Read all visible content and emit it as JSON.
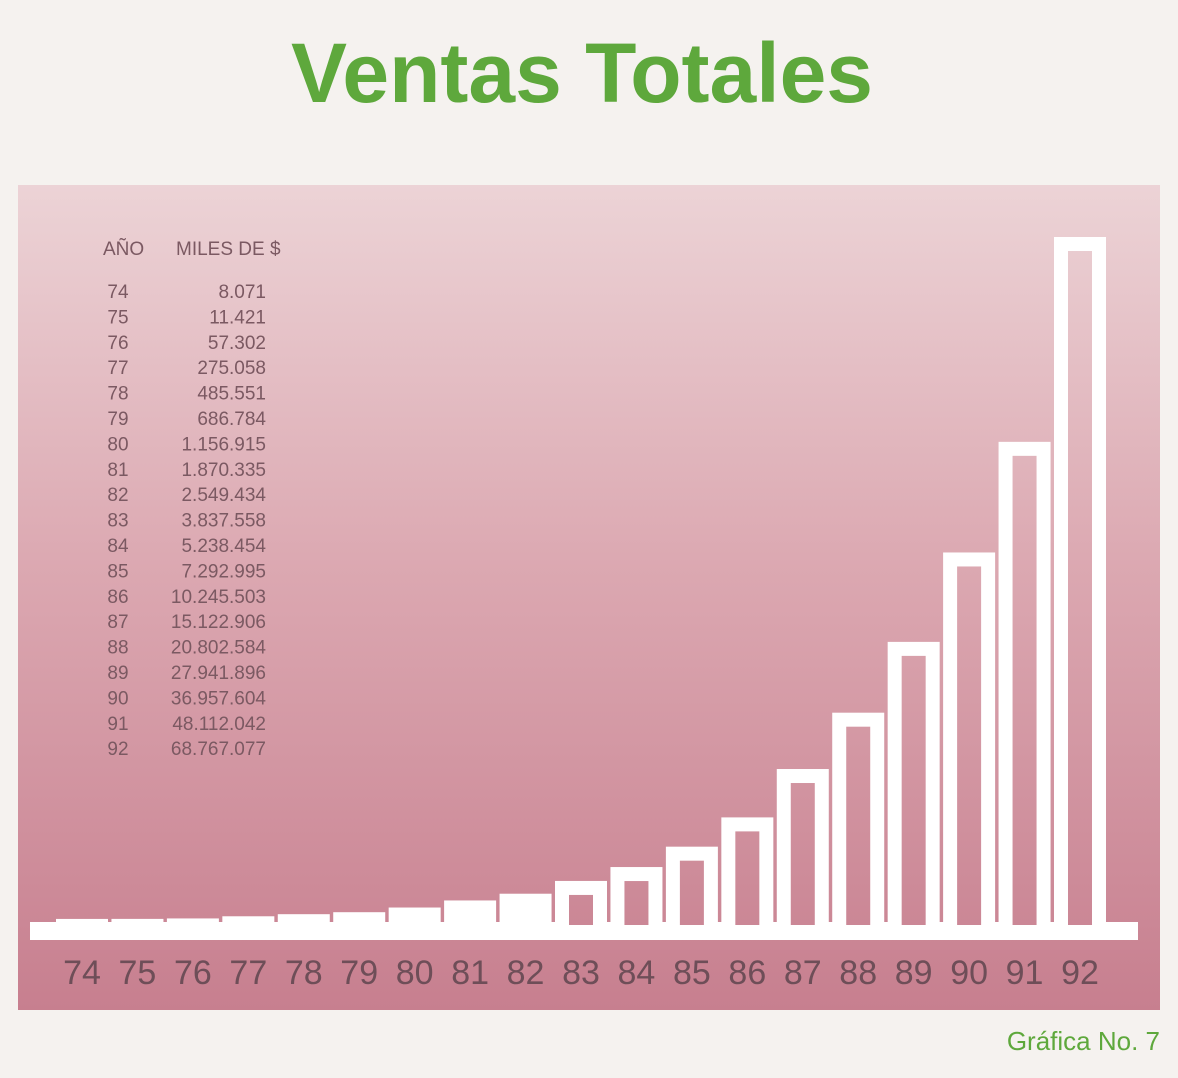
{
  "chart_data": {
    "type": "bar",
    "title": "Ventas Totales",
    "footer": "Gráfica No. 7",
    "table_headers": [
      "AÑO",
      "MILES DE $"
    ],
    "categories": [
      "74",
      "75",
      "76",
      "77",
      "78",
      "79",
      "80",
      "81",
      "82",
      "83",
      "84",
      "85",
      "86",
      "87",
      "88",
      "89",
      "90",
      "91",
      "92"
    ],
    "values": [
      8071,
      11421,
      57302,
      275058,
      485551,
      686784,
      1156915,
      1870335,
      2549434,
      3837558,
      5238454,
      7292995,
      10245503,
      15122906,
      20802584,
      27941896,
      36957604,
      48112042,
      68767077
    ],
    "value_labels": [
      "8.071",
      "11.421",
      "57.302",
      "275.058",
      "485.551",
      "686.784",
      "1.156.915",
      "1.870.335",
      "2.549.434",
      "3.837.558",
      "5.238.454",
      "7.292.995",
      "10.245.503",
      "15.122.906",
      "20.802.584",
      "27.941.896",
      "36.957.604",
      "48.112.042",
      "68.767.077"
    ],
    "color": "#ffffff"
  }
}
